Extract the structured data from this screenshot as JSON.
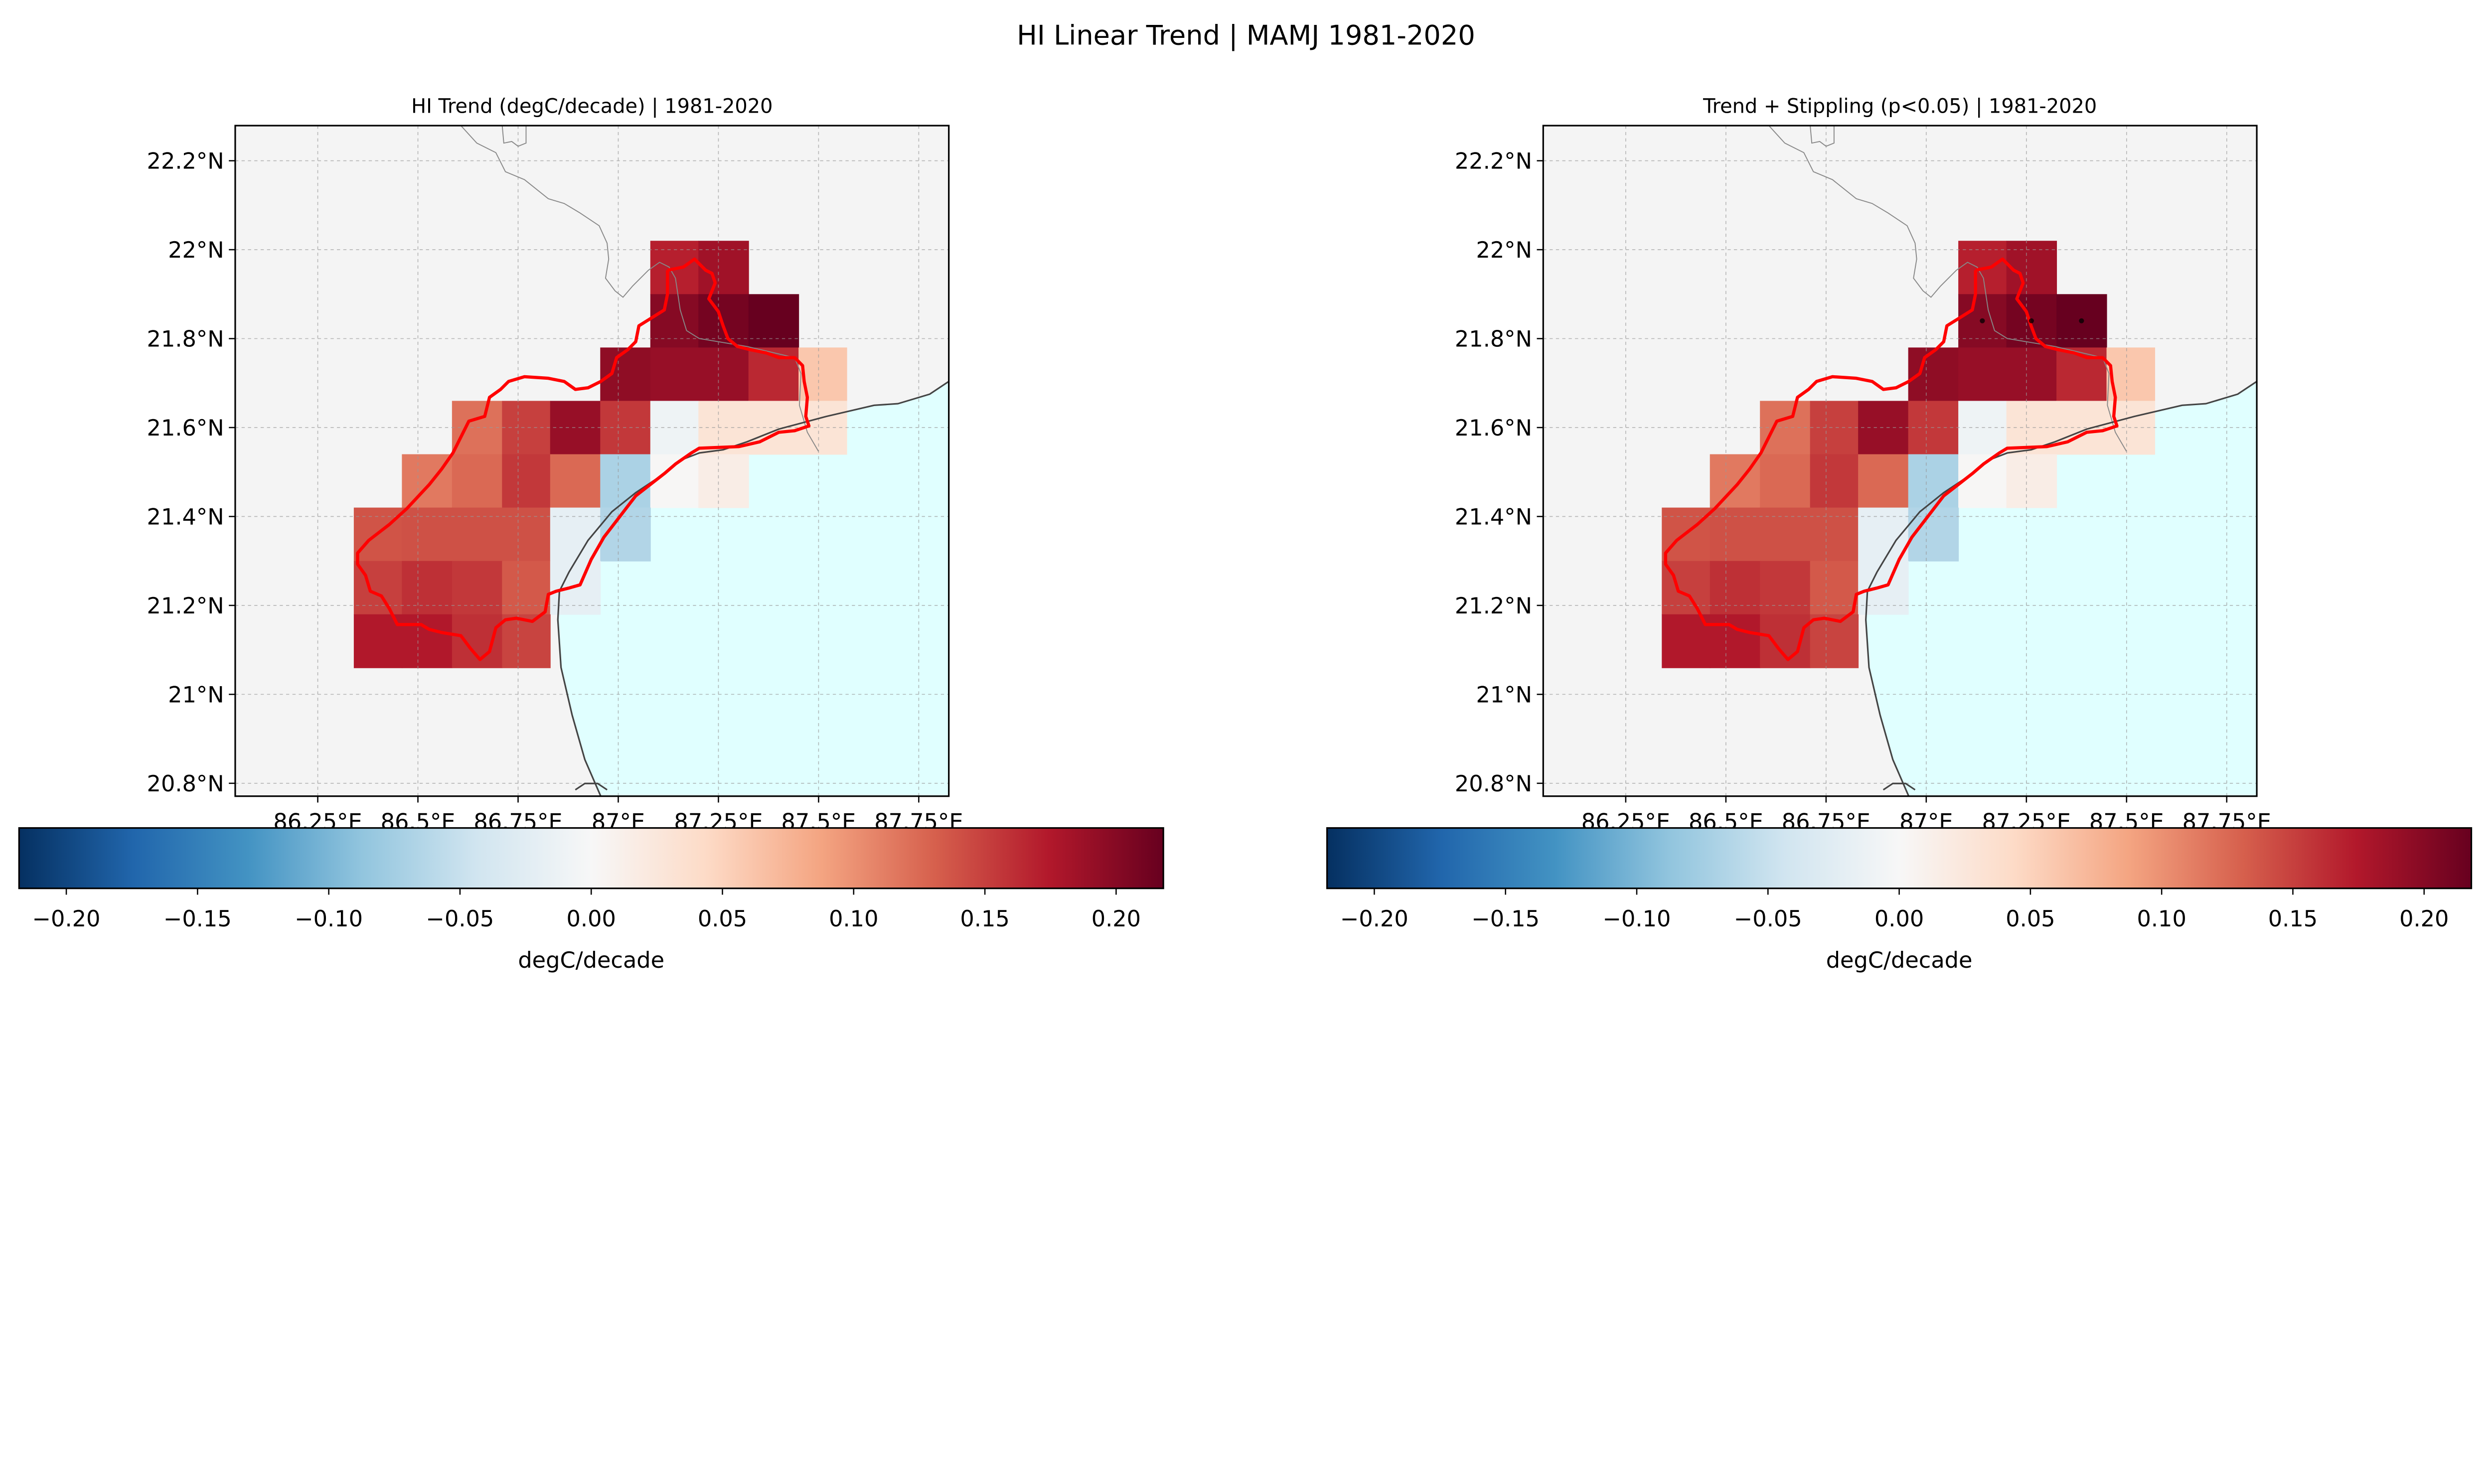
{
  "figure": {
    "suptitle": "HI Linear Trend | MAMJ 1981-2020"
  },
  "chart_data": [
    {
      "type": "heatmap",
      "title": "HI Trend (degC/decade) | 1981-2020",
      "colormap": "RdBu_r",
      "colorbar_label": "degC/decade",
      "vlim": [
        -0.218,
        0.218
      ],
      "colorbar_ticks": [
        "-0.20",
        "-0.15",
        "-0.10",
        "-0.05",
        "0.00",
        "0.05",
        "0.10",
        "0.15",
        "0.20"
      ],
      "xlim": [
        86.044,
        87.825
      ],
      "ylim": [
        20.771,
        22.279
      ],
      "x_ticks": [
        86.25,
        86.5,
        86.75,
        87.0,
        87.25,
        87.5,
        87.75
      ],
      "x_tick_labels": [
        "86.25°E",
        "86.5°E",
        "86.75°E",
        "87°E",
        "87.25°E",
        "87.5°E",
        "87.75°E"
      ],
      "y_ticks": [
        22.2,
        22.0,
        21.8,
        21.6,
        21.4,
        21.2,
        21.0,
        20.8
      ],
      "y_tick_labels": [
        "22.2°N",
        "22°N",
        "21.8°N",
        "21.6°N",
        "21.4°N",
        "21.2°N",
        "21°N",
        "20.8°N"
      ],
      "grid": true,
      "lon_edges": [
        86.34,
        86.46,
        86.585,
        86.71,
        86.83,
        86.955,
        87.08,
        87.2,
        87.325,
        87.45,
        87.57
      ],
      "lat_edges": [
        22.02,
        21.9,
        21.78,
        21.66,
        21.54,
        21.42,
        21.3,
        21.18,
        21.06
      ],
      "values": [
        [
          null,
          null,
          null,
          null,
          null,
          null,
          0.17,
          0.185,
          null,
          null
        ],
        [
          null,
          null,
          null,
          null,
          null,
          null,
          0.2,
          0.21,
          0.218,
          null
        ],
        [
          null,
          null,
          null,
          null,
          null,
          0.195,
          0.19,
          0.19,
          0.165,
          0.06
        ],
        [
          null,
          null,
          0.12,
          0.15,
          0.19,
          0.155,
          -0.01,
          0.03,
          0.03,
          0.03
        ],
        [
          null,
          0.115,
          0.125,
          0.155,
          0.125,
          -0.07,
          0.002,
          0.015,
          null,
          null
        ],
        [
          0.138,
          0.14,
          0.14,
          0.14,
          -0.02,
          -0.065,
          null,
          null,
          null,
          null
        ],
        [
          0.15,
          0.16,
          0.155,
          0.135,
          -0.02,
          null,
          null,
          null,
          null,
          null
        ],
        [
          0.175,
          0.175,
          0.16,
          0.148,
          null,
          null,
          null,
          null,
          null,
          null
        ]
      ],
      "stippled_cells": []
    },
    {
      "type": "heatmap",
      "title": "Trend + Stippling (p<0.05) | 1981-2020",
      "colormap": "RdBu_r",
      "colorbar_label": "degC/decade",
      "vlim": [
        -0.218,
        0.218
      ],
      "colorbar_ticks": [
        "-0.20",
        "-0.15",
        "-0.10",
        "-0.05",
        "0.00",
        "0.05",
        "0.10",
        "0.15",
        "0.20"
      ],
      "xlim": [
        86.044,
        87.825
      ],
      "ylim": [
        20.771,
        22.279
      ],
      "x_ticks": [
        86.25,
        86.5,
        86.75,
        87.0,
        87.25,
        87.5,
        87.75
      ],
      "x_tick_labels": [
        "86.25°E",
        "86.5°E",
        "86.75°E",
        "87°E",
        "87.25°E",
        "87.5°E",
        "87.75°E"
      ],
      "y_ticks": [
        22.2,
        22.0,
        21.8,
        21.6,
        21.4,
        21.2,
        21.0,
        20.8
      ],
      "y_tick_labels": [
        "22.2°N",
        "22°N",
        "21.8°N",
        "21.6°N",
        "21.4°N",
        "21.2°N",
        "21°N",
        "20.8°N"
      ],
      "grid": true,
      "lon_edges": [
        86.34,
        86.46,
        86.585,
        86.71,
        86.83,
        86.955,
        87.08,
        87.2,
        87.325,
        87.45,
        87.57
      ],
      "lat_edges": [
        22.02,
        21.9,
        21.78,
        21.66,
        21.54,
        21.42,
        21.3,
        21.18,
        21.06
      ],
      "values": [
        [
          null,
          null,
          null,
          null,
          null,
          null,
          0.17,
          0.185,
          null,
          null
        ],
        [
          null,
          null,
          null,
          null,
          null,
          null,
          0.2,
          0.21,
          0.218,
          null
        ],
        [
          null,
          null,
          null,
          null,
          null,
          0.195,
          0.19,
          0.19,
          0.165,
          0.06
        ],
        [
          null,
          null,
          0.12,
          0.15,
          0.19,
          0.155,
          -0.01,
          0.03,
          0.03,
          0.03
        ],
        [
          null,
          0.115,
          0.125,
          0.155,
          0.125,
          -0.07,
          0.002,
          0.015,
          null,
          null
        ],
        [
          0.138,
          0.14,
          0.14,
          0.14,
          -0.02,
          -0.065,
          null,
          null,
          null,
          null
        ],
        [
          0.15,
          0.16,
          0.155,
          0.135,
          -0.02,
          null,
          null,
          null,
          null,
          null
        ],
        [
          0.175,
          0.175,
          0.16,
          0.148,
          null,
          null,
          null,
          null,
          null,
          null
        ]
      ],
      "stippled_cells": [
        [
          1,
          6
        ],
        [
          1,
          7
        ],
        [
          1,
          8
        ]
      ]
    }
  ],
  "colors": {
    "land": "#f4f4f4",
    "sea": "#e0ffff",
    "basin_outline": "#ff0000",
    "coastline": "#444444",
    "border": "#888888",
    "colormap_stops": [
      "#053061",
      "#2166ac",
      "#4393c3",
      "#92c5de",
      "#d1e5f0",
      "#f7f7f7",
      "#fddbc7",
      "#f4a582",
      "#d6604d",
      "#b2182b",
      "#67001f"
    ]
  }
}
